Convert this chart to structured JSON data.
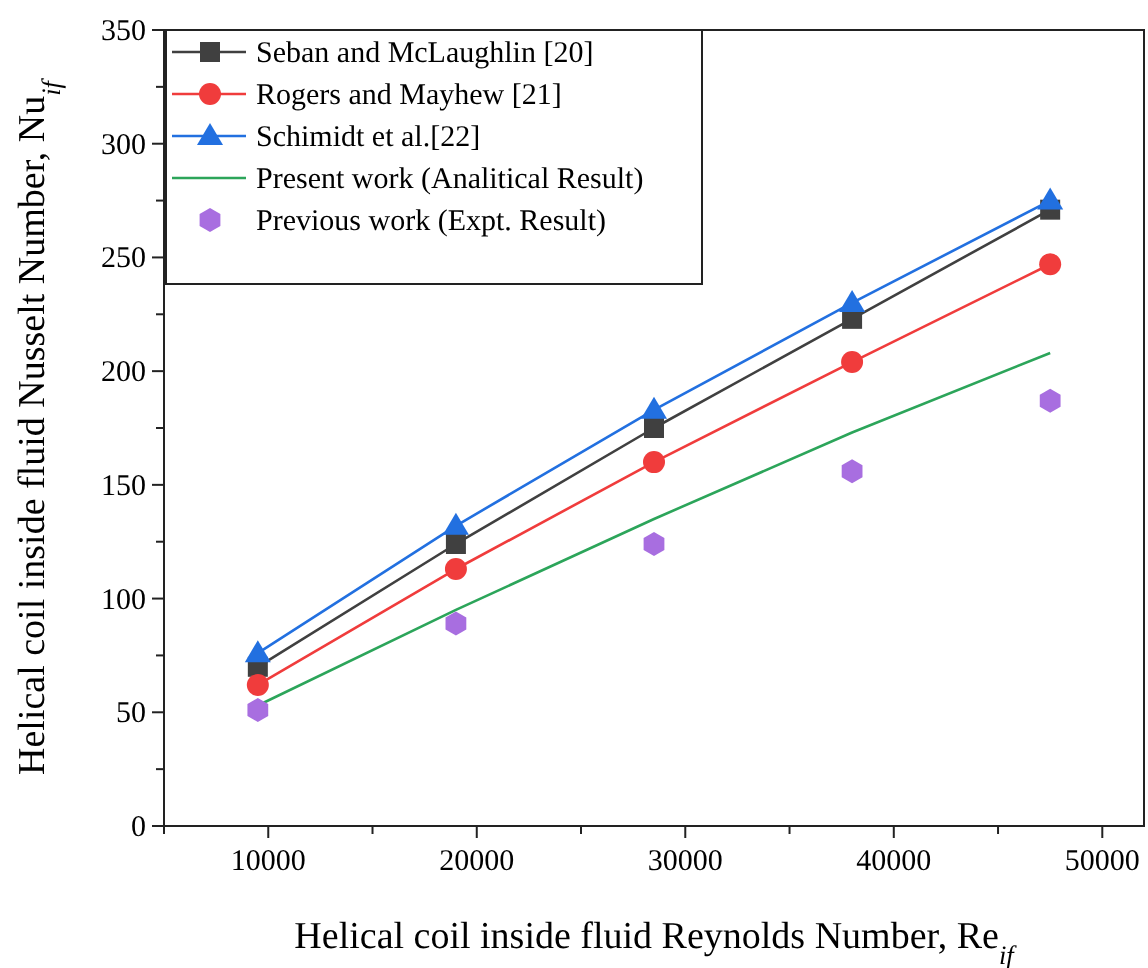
{
  "chart_data": {
    "type": "line",
    "xlabel": "Helical coil inside fluid Reynolds Number, Re$_{if}$",
    "ylabel": "Helical coil inside fluid Nusselt Number, Nu$_{if}$",
    "x": [
      9500,
      19000,
      28500,
      38000,
      47500
    ],
    "xlim": [
      5000,
      52000
    ],
    "xticks": [
      {
        "value": 5000,
        "label": null
      },
      10000,
      {
        "value": 15000,
        "label": null
      },
      20000,
      {
        "value": 25000,
        "label": null
      },
      30000,
      {
        "value": 35000,
        "label": null
      },
      40000,
      {
        "value": 45000,
        "label": null
      },
      50000
    ],
    "ylim": [
      0,
      350
    ],
    "yticks": [
      0,
      {
        "value": 25,
        "label": null
      },
      50,
      {
        "value": 75,
        "label": null
      },
      100,
      {
        "value": 125,
        "label": null
      },
      150,
      {
        "value": 175,
        "label": null
      },
      200,
      {
        "value": 225,
        "label": null
      },
      250,
      {
        "value": 275,
        "label": null
      },
      300,
      {
        "value": 325,
        "label": null
      },
      350
    ],
    "legend": "top left",
    "grid": false,
    "series": [
      {
        "name": "Seban and McLaughlin [20]",
        "color": "#404040",
        "marker": "square",
        "values": [
          70,
          124,
          175,
          223,
          271
        ]
      },
      {
        "name": "Rogers and Mayhew [21]",
        "color": "#f03c3c",
        "marker": "circle",
        "values": [
          62,
          113,
          160,
          204,
          247
        ]
      },
      {
        "name": "Schimidt et al.[22]",
        "color": "#2270e0",
        "marker": "triangle",
        "values": [
          76,
          132,
          183,
          230,
          275
        ]
      },
      {
        "name": "Present work (Analitical Result)",
        "color": "#2ca55a",
        "marker": "none",
        "values": [
          53,
          95,
          135,
          173,
          208
        ]
      },
      {
        "name": "Previous work (Expt. Result)",
        "type": "scatter",
        "color": "#a86ee0",
        "values": [
          51,
          89,
          124,
          156,
          187
        ]
      }
    ]
  }
}
